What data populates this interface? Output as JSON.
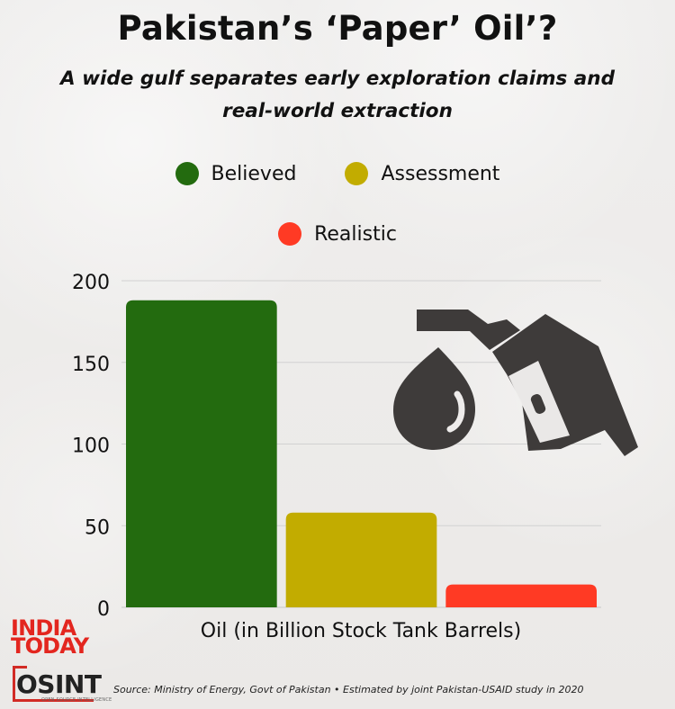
{
  "header": {
    "title": "Pakistan’s ‘Paper’ Oil’?",
    "subtitle": "A wide gulf separates early exploration claims and real-world extraction"
  },
  "legend": [
    {
      "label": "Believed",
      "color": "#236b0f"
    },
    {
      "label": "Assessment",
      "color": "#c2ac00"
    },
    {
      "label": "Realistic",
      "color": "#ff3a24"
    }
  ],
  "chart_data": {
    "type": "bar",
    "categories": [
      "Believed",
      "Assessment",
      "Realistic"
    ],
    "values": [
      188,
      58,
      14
    ],
    "colors": [
      "#236b0f",
      "#c2ac00",
      "#ff3a24"
    ],
    "title": "Pakistan’s ‘Paper’ Oil’?",
    "subtitle": "A wide gulf separates early exploration claims and real-world extraction",
    "xlabel": "Oil (in Billion Stock Tank Barrels)",
    "ylabel": "",
    "ylim": [
      0,
      200
    ],
    "yticks": [
      0,
      50,
      100,
      150,
      200
    ],
    "grid": true,
    "legend_position": "top"
  },
  "footer": {
    "logo_line_1": "INDIA",
    "logo_line_2": "TODAY",
    "osint": "OSINT",
    "osint_sub": "OPEN SOURCE INTELLIGENCE",
    "source": "Source: Ministry of Energy, Govt of Pakistan   •  Estimated by joint Pakistan-USAID study in 2020"
  }
}
